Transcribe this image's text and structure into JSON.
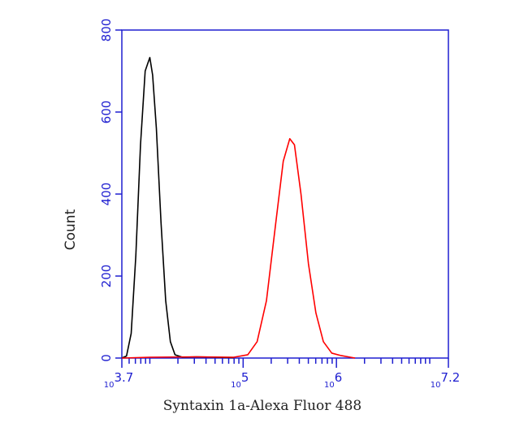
{
  "chart_data": {
    "type": "line",
    "x_label": "Syntaxin 1a-Alexa Fluor 488",
    "y_label": "Count",
    "xscale": "log",
    "xlim": [
      5011.872,
      15848932
    ],
    "xticks": [
      {
        "value": 5011.872,
        "label": "10",
        "exponent": "3.7"
      },
      {
        "value": 100000,
        "label": "10",
        "exponent": "5"
      },
      {
        "value": 1000000,
        "label": "10",
        "exponent": "6"
      },
      {
        "value": 15848932,
        "label": "10",
        "exponent": "7.2"
      }
    ],
    "xminorticks": [
      6000,
      7000,
      8000,
      9000,
      10000,
      20000,
      30000,
      40000,
      50000,
      60000,
      70000,
      80000,
      90000,
      200000,
      300000,
      400000,
      500000,
      600000,
      700000,
      800000,
      900000,
      2000000,
      3000000,
      4000000,
      5000000,
      6000000,
      7000000,
      8000000,
      9000000,
      10000000
    ],
    "ylim": [
      0,
      800
    ],
    "yticks": [
      0,
      200,
      400,
      600,
      800
    ],
    "axis_color": "#1f1fd0",
    "series": [
      {
        "color": "#000000",
        "x": [
          5012,
          5623,
          6310,
          7079,
          7943,
          8913,
          9550,
          10000,
          10715,
          11749,
          13183,
          14791,
          16596,
          18621,
          22387,
          31623,
          50119,
          79433
        ],
        "values": [
          0,
          5,
          60,
          250,
          520,
          700,
          720,
          733,
          690,
          560,
          330,
          140,
          40,
          8,
          2,
          3,
          2,
          1
        ]
      },
      {
        "color": "#ff0000",
        "x": [
          5012,
          10000,
          31623,
          79433,
          112202,
          141254,
          177828,
          223872,
          269153,
          316228,
          354813,
          416869,
          501187,
          602560,
          724436,
          891251,
          1122018,
          1412538,
          1584893
        ],
        "values": [
          0,
          2,
          3,
          2,
          8,
          40,
          140,
          330,
          480,
          535,
          520,
          400,
          230,
          110,
          40,
          12,
          6,
          2,
          0
        ]
      }
    ]
  }
}
